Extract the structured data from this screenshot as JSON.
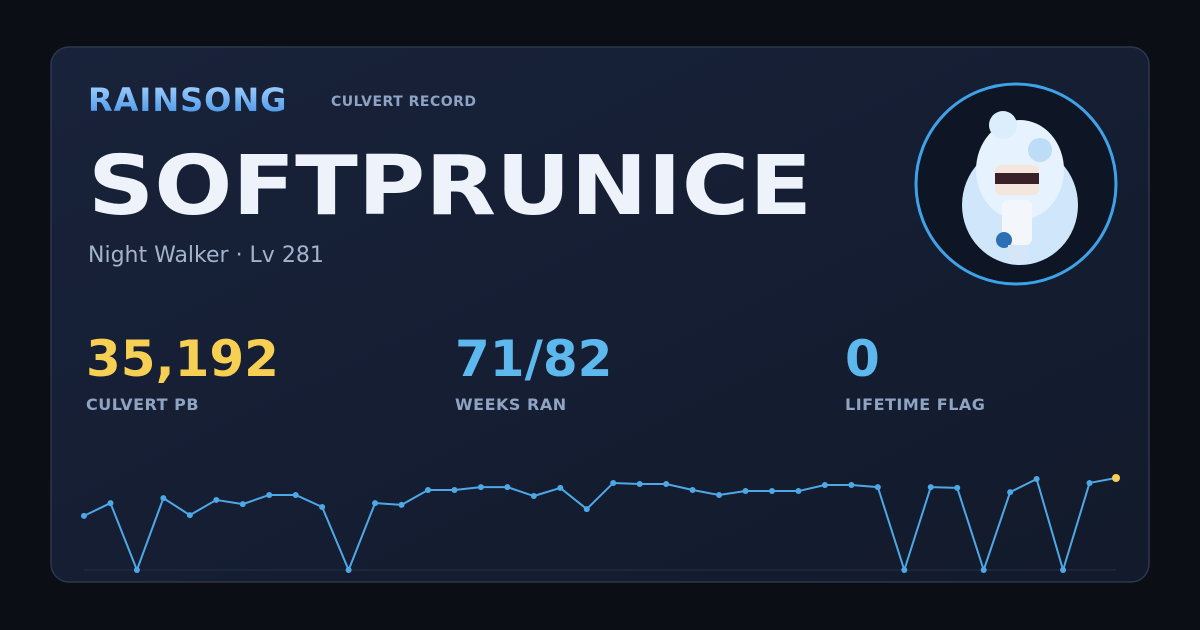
{
  "header": {
    "brand": "RAINSONG",
    "tag": "CULVERT RECORD"
  },
  "profile": {
    "name": "SOFTPRUNICE",
    "subtitle": "Night Walker · Lv 281"
  },
  "stats": [
    {
      "value": "35,192",
      "label": "CULVERT PB"
    },
    {
      "value": "71/82",
      "label": "WEEKS RAN"
    },
    {
      "value": "0",
      "label": "LIFETIME FLAG"
    }
  ],
  "chart_data": {
    "type": "line",
    "values": [
      20700,
      25600,
      0,
      27500,
      21000,
      26800,
      25200,
      28700,
      28700,
      24100,
      0,
      25600,
      24900,
      30600,
      30600,
      31700,
      31700,
      28300,
      31400,
      23300,
      33300,
      32900,
      32900,
      30600,
      28700,
      30200,
      30200,
      30200,
      32500,
      32500,
      31700,
      0,
      31700,
      31400,
      0,
      29800,
      34800,
      0,
      33300,
      35192
    ],
    "ylim": [
      0,
      35192
    ],
    "color": "#4ea8e6",
    "highlight_color": "#f5cf56"
  }
}
